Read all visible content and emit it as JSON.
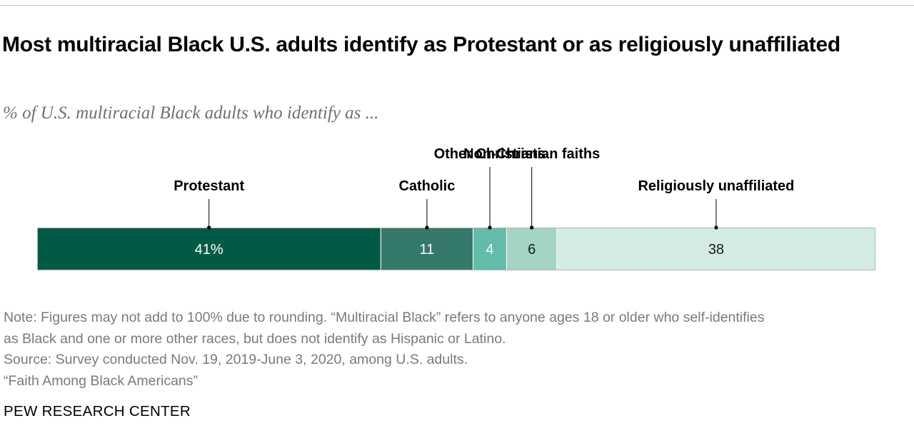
{
  "title": "Most multiracial Black U.S. adults identify as Protestant or as religiously unaffiliated",
  "subtitle": "% of U.S. multiracial Black adults who identify as ...",
  "chart_data": {
    "type": "bar",
    "orientation": "horizontal-stacked",
    "categories": [
      "Protestant",
      "Catholic",
      "Other Christians",
      "Non-Christian faiths",
      "Religiously unaffiliated"
    ],
    "values": [
      41,
      11,
      4,
      6,
      38
    ],
    "value_labels": [
      "41%",
      "11",
      "4",
      "6",
      "38"
    ],
    "colors": [
      "#005a45",
      "#35796a",
      "#63bbaa",
      "#a3d4c6",
      "#d3ebe4"
    ],
    "value_label_colors": [
      "#ffffff",
      "#ffffff",
      "#ffffff",
      "#1a1a1a",
      "#1a1a1a"
    ],
    "label_rows": [
      "lower",
      "lower",
      "upper",
      "upper",
      "lower"
    ],
    "xlim": [
      0,
      100
    ],
    "legend": "none",
    "grid": false
  },
  "notes": {
    "note_line1": "Note: Figures may not add to 100% due to rounding. “Multiracial Black” refers to anyone ages 18 or older who self-identifies",
    "note_line2": "as Black and one or more other races, but does not identify as Hispanic or Latino.",
    "source": "Source: Survey conducted Nov. 19, 2019-June 3, 2020, among U.S. adults.",
    "report": "“Faith Among Black Americans”"
  },
  "footer": "PEW RESEARCH CENTER"
}
